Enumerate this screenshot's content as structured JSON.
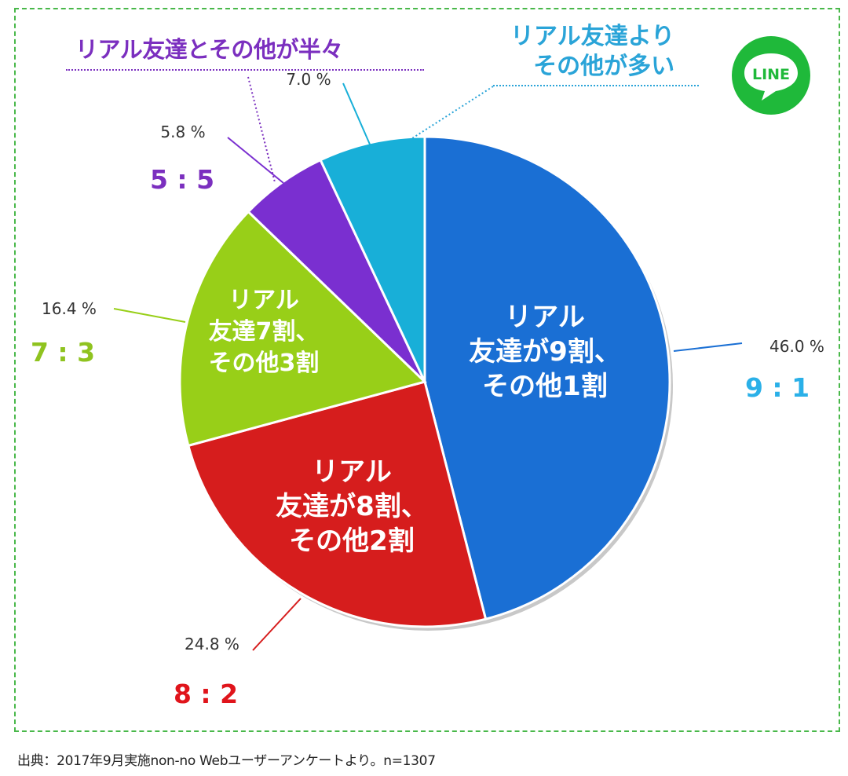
{
  "chart_data": {
    "type": "pie",
    "slices": [
      {
        "value": 46.0,
        "label_pct": "46.0 %",
        "ratio": "9 : 1",
        "inner_text": [
          "リアル",
          "友達が9割、",
          "その他1割"
        ],
        "color": "#1a6fd4",
        "ratio_color": "#2ab0e8"
      },
      {
        "value": 24.8,
        "label_pct": "24.8 %",
        "ratio": "8 : 2",
        "inner_text": [
          "リアル",
          "友達が8割、",
          "その他2割"
        ],
        "color": "#d61d1d",
        "ratio_color": "#e0141b"
      },
      {
        "value": 16.4,
        "label_pct": "16.4 %",
        "ratio": "7 : 3",
        "inner_text": [
          "リアル",
          "友達7割、",
          "その他3割"
        ],
        "color": "#98cf18",
        "ratio_color": "#8fc31f"
      },
      {
        "value": 5.8,
        "label_pct": "5.8 %",
        "ratio": "5 : 5",
        "inner_text": [],
        "color": "#7a2fd0",
        "ratio_color": "#7b2fbf"
      },
      {
        "value": 7.0,
        "label_pct": "7.0 %",
        "ratio": "",
        "inner_text": [],
        "color": "#18afd8",
        "ratio_color": "#18afd8"
      }
    ]
  },
  "annotations": {
    "half": "リアル友達とその他が半々",
    "more_line1": "リアル友達より",
    "more_line2": "その他が多い"
  },
  "logo": {
    "text": "LINE",
    "color": "#1fb93a"
  },
  "source": "出典：2017年9月実施non-no Webユーザーアンケートより。n=1307"
}
